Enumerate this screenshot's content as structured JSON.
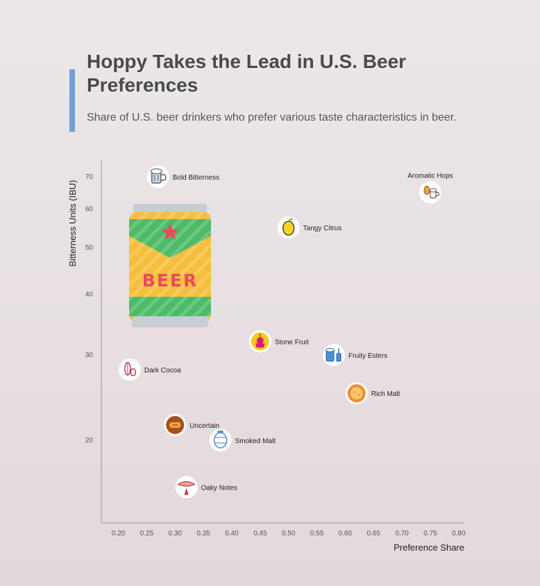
{
  "header": {
    "title": "Hoppy Takes the Lead in U.S. Beer Preferences",
    "subtitle": "Share of U.S. beer drinkers who prefer various taste characteristics in beer."
  },
  "colors": {
    "accent": "#6fa0dc",
    "axis": "#999999"
  },
  "decoration": {
    "can_text": "BEER"
  },
  "chart_data": {
    "type": "scatter",
    "xlabel": "Preference Share",
    "ylabel": "Bitterness Units (IBU)",
    "xlim": [
      0.17,
      0.81
    ],
    "ylim": [
      13.5,
      76
    ],
    "y_scale": "log",
    "xticks": [
      "0.20",
      "0.25",
      "0.30",
      "0.35",
      "0.40",
      "0.45",
      "0.50",
      "0.55",
      "0.60",
      "0.65",
      "0.70",
      "0.75",
      "0.80"
    ],
    "yticks": [
      "20",
      "30",
      "40",
      "50",
      "60",
      "70"
    ],
    "grid": false,
    "points": [
      {
        "label": "Bold Bitterness",
        "x": 0.27,
        "y": 70,
        "icon": "beer-mug-icon",
        "label_side": "right"
      },
      {
        "label": "Aromatic Hops",
        "x": 0.75,
        "y": 65,
        "icon": "hops-beer-icon",
        "label_side": "above"
      },
      {
        "label": "Tangy Citrus",
        "x": 0.5,
        "y": 55,
        "icon": "lemon-icon",
        "label_side": "right"
      },
      {
        "label": "Stone Fruit",
        "x": 0.45,
        "y": 32,
        "icon": "fruit-icon",
        "label_side": "right"
      },
      {
        "label": "Fruity Esters",
        "x": 0.58,
        "y": 30,
        "icon": "beer-bottle-icon",
        "label_side": "right"
      },
      {
        "label": "Dark Cocoa",
        "x": 0.22,
        "y": 28,
        "icon": "cocoa-icon",
        "label_side": "right"
      },
      {
        "label": "Rich Malt",
        "x": 0.62,
        "y": 25,
        "icon": "malt-icon",
        "label_side": "right"
      },
      {
        "label": "Uncertain",
        "x": 0.3,
        "y": 21.5,
        "icon": "question-icon",
        "label_side": "right"
      },
      {
        "label": "Smoked Malt",
        "x": 0.38,
        "y": 20,
        "icon": "barrel-icon",
        "label_side": "right"
      },
      {
        "label": "Oaky Notes",
        "x": 0.32,
        "y": 16,
        "icon": "oak-icon",
        "label_side": "right"
      }
    ]
  }
}
